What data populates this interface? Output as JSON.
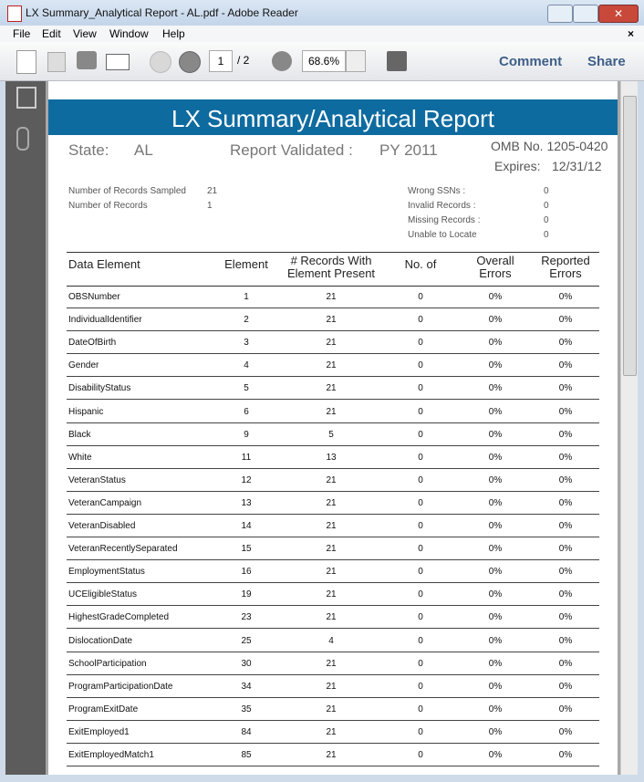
{
  "window": {
    "title": "LX Summary_Analytical Report - AL.pdf - Adobe Reader"
  },
  "menu": [
    "File",
    "Edit",
    "View",
    "Window",
    "Help"
  ],
  "toolbar": {
    "page": "1",
    "page_total": "/ 2",
    "zoom": "68.6%",
    "comment": "Comment",
    "share": "Share"
  },
  "report": {
    "title": "LX Summary/Analytical Report",
    "state_label": "State:",
    "state": "AL",
    "validated_label": "Report Validated :",
    "validated": "PY 2011",
    "omb": "OMB No. 1205-0420",
    "expires_label": "Expires:",
    "expires": "12/31/12",
    "stats_left": [
      [
        "Number of Records Sampled",
        "21"
      ],
      [
        "Number of Records",
        "1"
      ]
    ],
    "stats_right": [
      [
        "Wrong SSNs :",
        "0"
      ],
      [
        "Invalid Records :",
        "0"
      ],
      [
        "Missing Records :",
        "0"
      ],
      [
        "Unable to Locate",
        "0"
      ]
    ]
  },
  "table": {
    "header": [
      "Data Element",
      "Element",
      "# Records With\nElement Present",
      "No. of",
      "Overall\nErrors",
      "Reported\nErrors"
    ],
    "rows": [
      [
        "OBSNumber",
        "1",
        "21",
        "0",
        "0%",
        "0%"
      ],
      [
        "IndividualIdentifier",
        "2",
        "21",
        "0",
        "0%",
        "0%"
      ],
      [
        "DateOfBirth",
        "3",
        "21",
        "0",
        "0%",
        "0%"
      ],
      [
        "Gender",
        "4",
        "21",
        "0",
        "0%",
        "0%"
      ],
      [
        "DisabilityStatus",
        "5",
        "21",
        "0",
        "0%",
        "0%"
      ],
      [
        "Hispanic",
        "6",
        "21",
        "0",
        "0%",
        "0%"
      ],
      [
        "Black",
        "9",
        "5",
        "0",
        "0%",
        "0%"
      ],
      [
        "White",
        "11",
        "13",
        "0",
        "0%",
        "0%"
      ],
      [
        "VeteranStatus",
        "12",
        "21",
        "0",
        "0%",
        "0%"
      ],
      [
        "VeteranCampaign",
        "13",
        "21",
        "0",
        "0%",
        "0%"
      ],
      [
        "VeteranDisabled",
        "14",
        "21",
        "0",
        "0%",
        "0%"
      ],
      [
        "VeteranRecentlySeparated",
        "15",
        "21",
        "0",
        "0%",
        "0%"
      ],
      [
        "EmploymentStatus",
        "16",
        "21",
        "0",
        "0%",
        "0%"
      ],
      [
        "UCEligibleStatus",
        "19",
        "21",
        "0",
        "0%",
        "0%"
      ],
      [
        "HighestGradeCompleted",
        "23",
        "21",
        "0",
        "0%",
        "0%"
      ],
      [
        "DislocationDate",
        "25",
        "4",
        "0",
        "0%",
        "0%"
      ],
      [
        "SchoolParticipation",
        "30",
        "21",
        "0",
        "0%",
        "0%"
      ],
      [
        "ProgramParticipationDate",
        "34",
        "21",
        "0",
        "0%",
        "0%"
      ],
      [
        "ProgramExitDate",
        "35",
        "21",
        "0",
        "0%",
        "0%"
      ],
      [
        "ExitEmployed1",
        "84",
        "21",
        "0",
        "0%",
        "0%"
      ],
      [
        "ExitEmployedMatch1",
        "85",
        "21",
        "0",
        "0%",
        "0%"
      ]
    ]
  }
}
